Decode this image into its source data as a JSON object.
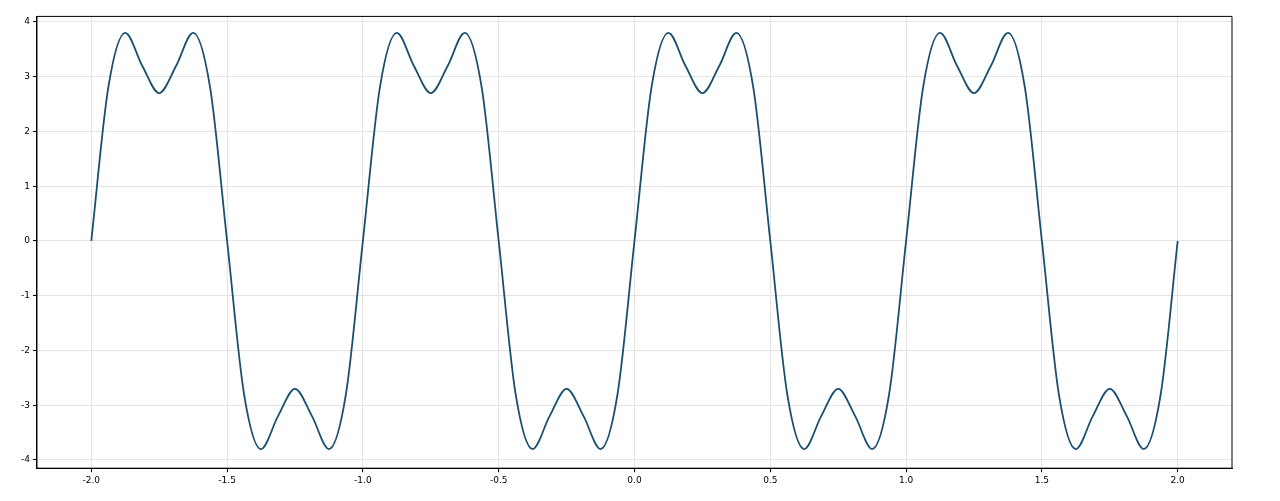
{
  "chart_data": {
    "type": "line",
    "color": "#1b4f72",
    "x": [
      -2,
      -1.9375,
      -1.875,
      -1.8125,
      -1.75,
      -1.6875,
      -1.625,
      -1.5625,
      -1.5,
      -1.4375,
      -1.375,
      -1.3125,
      -1.25,
      -1.1875,
      -1.125,
      -1.0625,
      -1,
      -0.9375,
      -0.875,
      -0.8125,
      -0.75,
      -0.6875,
      -0.625,
      -0.5625,
      -0.5,
      -0.4375,
      -0.375,
      -0.3125,
      -0.25,
      -0.1875,
      -0.125,
      -0.0625,
      0,
      0.0625,
      0.125,
      0.1875,
      0.25,
      0.3125,
      0.375,
      0.4375,
      0.5,
      0.5625,
      0.625,
      0.6875,
      0.75,
      0.8125,
      0.875,
      0.9375,
      1,
      1.0625,
      1.125,
      1.1875,
      1.25,
      1.3125,
      1.375,
      1.4375,
      1.5,
      1.5625,
      1.625,
      1.6875,
      1.75,
      1.8125,
      1.875,
      1.9375,
      2
    ],
    "values": [
      0,
      2.8,
      3.8,
      3.2,
      2.7,
      3.2,
      3.8,
      2.8,
      0,
      -2.8,
      -3.8,
      -3.2,
      -2.7,
      -3.2,
      -3.8,
      -2.8,
      0,
      2.8,
      3.8,
      3.2,
      2.7,
      3.2,
      3.8,
      2.8,
      0,
      -2.8,
      -3.8,
      -3.2,
      -2.7,
      -3.2,
      -3.8,
      -2.8,
      0,
      2.8,
      3.8,
      3.2,
      2.7,
      3.2,
      3.8,
      2.8,
      0,
      -2.8,
      -3.8,
      -3.2,
      -2.7,
      -3.2,
      -3.8,
      -2.8,
      0,
      2.8,
      3.8,
      3.2,
      2.7,
      3.2,
      3.8,
      2.8,
      0,
      -2.8,
      -3.8,
      -3.2,
      -2.7,
      -3.2,
      -3.8,
      -2.8,
      0
    ],
    "xlim": [
      -2.2,
      2.2
    ],
    "xticks": [
      {
        "value": -2,
        "label": "-2.0"
      },
      {
        "value": -1.5,
        "label": "-1.5"
      },
      {
        "value": -1,
        "label": "-1.0"
      },
      {
        "value": -0.5,
        "label": "-0.5"
      },
      {
        "value": 0,
        "label": "0.0"
      },
      {
        "value": 0.5,
        "label": "0.5"
      },
      {
        "value": 1,
        "label": "1.0"
      },
      {
        "value": 1.5,
        "label": "1.5"
      },
      {
        "value": 2,
        "label": "2.0"
      }
    ],
    "ylim": [
      -4.15,
      4.1
    ],
    "yticks": [
      -4,
      -3,
      -2,
      -1,
      0,
      1,
      2,
      3,
      4
    ],
    "grid": true,
    "legend": false,
    "marker": "none",
    "line_style": "solid"
  }
}
